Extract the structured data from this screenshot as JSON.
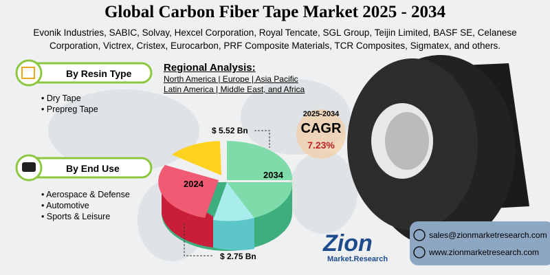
{
  "header": {
    "title": "Global Carbon Fiber Tape Market 2025 - 2034",
    "companies": [
      "Evonik Industries, SABIC, Solvay, Hexcel Corporation, Royal Tencate, SGL Group, Teijin Limited, BASF SE, Celanese",
      "Corporation, Victrex, Cristex, Eurocarbon, PRF Composite Materials, TCR Composites, Sigmatex, and others."
    ]
  },
  "segments": [
    {
      "title": "By Resin Type",
      "items": [
        "Dry Tape",
        "Prepreg Tape"
      ]
    },
    {
      "title": "By End Use",
      "items": [
        "Aerospace & Defense",
        "Automotive",
        "Sports & Leisure"
      ]
    }
  ],
  "regional": {
    "title": "Regional Analysis:",
    "lines": [
      "North America | Europe | Asia Pacific",
      "Latin America | Middle East, and Africa"
    ]
  },
  "cagr": {
    "period": "2025-2034",
    "label": "CAGR",
    "value": "7.23%"
  },
  "pie": {
    "slices": [
      {
        "label": "2024",
        "value_label": "$ 2.75 Bn"
      },
      {
        "label": "2034",
        "value_label": "$ 5.52 Bn"
      }
    ]
  },
  "brand": {
    "name": "Zion",
    "sub": "Market.Research"
  },
  "contact": {
    "email": "sales@zionmarketresearch.com",
    "website": "www.zionmarketresearch.com"
  }
}
